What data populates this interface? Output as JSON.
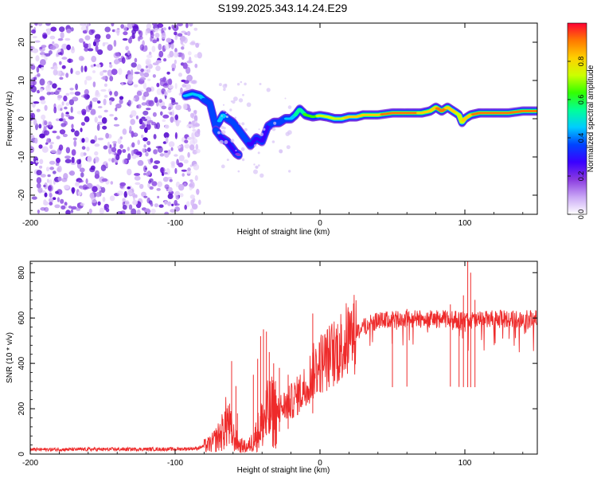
{
  "title": "S199.2025.343.14.24.E29",
  "chart_data": [
    {
      "type": "heatmap",
      "xlabel": "Height of straight line (km)",
      "ylabel": "Frequency (Hz)",
      "xlim": [
        -200,
        150
      ],
      "ylim": [
        -25,
        25
      ],
      "xticks": [
        -200,
        -100,
        0,
        100
      ],
      "xtick_labels": [
        "-200",
        "-100",
        "0",
        "100"
      ],
      "yticks": [
        -20,
        -10,
        0,
        10,
        20
      ],
      "ytick_labels": [
        "-20",
        "-10",
        "0",
        "10",
        "20"
      ],
      "colorbar": {
        "label": "Normalized spectral amplitude",
        "range": [
          0,
          1
        ],
        "ticks": [
          0.0,
          0.2,
          0.4,
          0.6,
          0.8
        ],
        "tick_labels": [
          "0.0",
          "0.2",
          "0.4",
          "0.6",
          "0.8"
        ],
        "colors": [
          "#ffffff",
          "#c9a6f5",
          "#8a3be0",
          "#3a00ff",
          "#0044ff",
          "#00ccff",
          "#00ff99",
          "#33ff00",
          "#ccff00",
          "#ffd000",
          "#ff7a00",
          "#ff0033"
        ]
      },
      "noise_region_x": [
        -200,
        -83
      ],
      "ridge": {
        "x": [
          -93,
          -88,
          -83,
          -80,
          -76,
          -74,
          -72,
          -70,
          -67,
          -64,
          -60,
          -56,
          -52,
          -48,
          -44,
          -40,
          -36,
          -32,
          -28,
          -24,
          -20,
          -17,
          -14,
          -10,
          -5,
          0,
          5,
          10,
          15,
          20,
          25,
          30,
          40,
          50,
          60,
          70,
          76,
          80,
          84,
          88,
          92,
          96,
          98,
          100,
          104,
          110,
          120,
          130,
          140,
          150
        ],
        "freq": [
          6,
          6.5,
          6,
          5,
          4,
          1,
          -2,
          -1,
          1,
          0,
          -1,
          -3,
          -5,
          -7,
          -5,
          -6,
          -2,
          -1,
          -1,
          0,
          0,
          1,
          2.5,
          1,
          0.5,
          0.8,
          0.5,
          0,
          0,
          0.5,
          0.5,
          1,
          1,
          1.5,
          1.5,
          1.5,
          2,
          3,
          2,
          3,
          2,
          1,
          -1,
          0,
          1,
          1.5,
          1.5,
          1.5,
          2,
          2
        ],
        "amplitude": [
          0.45,
          0.5,
          0.45,
          0.4,
          0.35,
          0.35,
          0.35,
          0.4,
          0.45,
          0.4,
          0.4,
          0.35,
          0.35,
          0.3,
          0.3,
          0.3,
          0.3,
          0.35,
          0.35,
          0.4,
          0.45,
          0.5,
          0.55,
          0.6,
          0.65,
          0.7,
          0.7,
          0.75,
          0.75,
          0.8,
          0.8,
          0.85,
          0.85,
          0.9,
          0.9,
          0.85,
          0.85,
          0.85,
          0.9,
          0.85,
          0.8,
          0.75,
          0.75,
          0.8,
          0.85,
          0.9,
          0.9,
          0.95,
          0.95,
          0.9
        ]
      },
      "branch": {
        "x": [
          -72,
          -68,
          -64,
          -62,
          -60,
          -58,
          -56
        ],
        "freq": [
          -3,
          -5,
          -6,
          -7,
          -8,
          -9,
          -9.5
        ],
        "amplitude": [
          0.35,
          0.3,
          0.3,
          0.3,
          0.25,
          0.25,
          0.2
        ]
      }
    },
    {
      "type": "line",
      "xlabel": "Height of straight line (km)",
      "ylabel": "SNR (10 * v/v)",
      "xlim": [
        -200,
        150
      ],
      "ylim": [
        0,
        850
      ],
      "xticks": [
        -200,
        -100,
        0,
        100
      ],
      "xtick_labels": [
        "-200",
        "-100",
        "0",
        "100"
      ],
      "yticks": [
        0,
        200,
        400,
        600,
        800
      ],
      "ytick_labels": [
        "0",
        "200",
        "400",
        "600",
        "800"
      ],
      "series": [
        {
          "name": "SNR",
          "color": "#ee2b2b",
          "baseline_x": [
            -200,
            -100,
            -85,
            -75,
            -68,
            -64,
            -60,
            -56,
            -50,
            -46,
            -42,
            -38,
            -35,
            -30,
            -25,
            -20,
            -15,
            -10,
            -5,
            0,
            5,
            10,
            15,
            20,
            25,
            30,
            35,
            40,
            45,
            50,
            60,
            70,
            80,
            90,
            100,
            110,
            120,
            130,
            140,
            150
          ],
          "baseline_y": [
            20,
            22,
            25,
            45,
            90,
            150,
            80,
            40,
            30,
            60,
            110,
            160,
            180,
            190,
            210,
            230,
            260,
            300,
            360,
            400,
            420,
            450,
            480,
            510,
            540,
            560,
            575,
            585,
            590,
            590,
            595,
            595,
            595,
            595,
            590,
            590,
            595,
            595,
            595,
            595
          ],
          "spikes_x": [
            -61,
            -58,
            -57,
            -46,
            -43,
            -41,
            -39,
            -37,
            -35,
            -32,
            -28,
            -22,
            -5,
            102,
            104,
            99,
            96,
            107,
            90,
            60,
            50
          ],
          "spikes_y": [
            410,
            300,
            180,
            350,
            420,
            520,
            550,
            540,
            450,
            400,
            380,
            350,
            620,
            850,
            800,
            700,
            620,
            680,
            660,
            640,
            630
          ]
        }
      ]
    }
  ]
}
